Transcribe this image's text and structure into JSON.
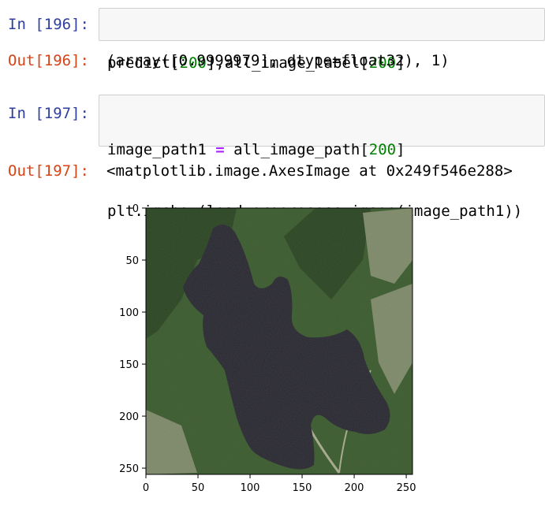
{
  "cells": [
    {
      "in_prompt": "In [196]:",
      "code_lines": [
        [
          {
            "t": "predict[",
            "c": ""
          },
          {
            "t": "200",
            "c": "num"
          },
          {
            "t": "],all_image_label[",
            "c": ""
          },
          {
            "t": "200",
            "c": "num"
          },
          {
            "t": "]",
            "c": ""
          }
        ]
      ],
      "out_prompt": "Out[196]:",
      "output": "(array([0.9999979], dtype=float32), 1)"
    },
    {
      "in_prompt": "In [197]:",
      "code_lines": [
        [
          {
            "t": "image_path1 ",
            "c": ""
          },
          {
            "t": "=",
            "c": "op"
          },
          {
            "t": " all_image_path[",
            "c": ""
          },
          {
            "t": "200",
            "c": "num"
          },
          {
            "t": "]",
            "c": ""
          }
        ],
        [
          {
            "t": "plt.imshow(load_preprosess_image(image_path1))",
            "c": ""
          }
        ]
      ],
      "out_prompt": "Out[197]:",
      "output": "<matplotlib.image.AxesImage at 0x249f546e288>"
    }
  ],
  "plot": {
    "x_ticks": [
      "0",
      "50",
      "100",
      "150",
      "200",
      "250"
    ],
    "y_ticks": [
      "0",
      "50",
      "100",
      "150",
      "200",
      "250"
    ],
    "x_tick_values": [
      0,
      50,
      100,
      150,
      200,
      250
    ],
    "y_tick_values": [
      0,
      50,
      100,
      150,
      200,
      250
    ],
    "extent": [
      0,
      256
    ],
    "colors": {
      "forest": "#3d5a2e",
      "forest_dark": "#2b4221",
      "lake": "#2a2233",
      "clearing": "#8a8f72",
      "road": "#b8b49c"
    }
  }
}
